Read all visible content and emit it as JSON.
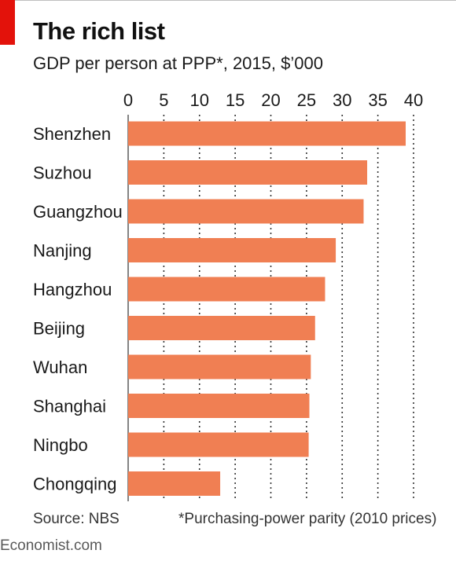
{
  "title": "The rich list",
  "subtitle": "GDP per person at PPP*, 2015, $’000",
  "source": "Source: NBS",
  "footnote": "*Purchasing-power parity (2010 prices)",
  "brand": "Economist.com",
  "colors": {
    "bar": "#f07f53",
    "accent": "#e3120b",
    "grid": "#333333"
  },
  "chart_data": {
    "type": "bar",
    "orientation": "horizontal",
    "title": "The rich list",
    "subtitle": "GDP per person at PPP*, 2015, $’000",
    "categories": [
      "Shenzhen",
      "Suzhou",
      "Guangzhou",
      "Nanjing",
      "Hangzhou",
      "Beijing",
      "Wuhan",
      "Shanghai",
      "Ningbo",
      "Chongqing"
    ],
    "values": [
      38.9,
      33.5,
      33.0,
      29.1,
      27.6,
      26.2,
      25.6,
      25.4,
      25.3,
      12.9
    ],
    "xlim": [
      0,
      40
    ],
    "xticks": [
      "0",
      "5",
      "10",
      "15",
      "20",
      "25",
      "30",
      "35",
      "40"
    ],
    "xlabel": "",
    "ylabel": "",
    "grid": "vertical dotted",
    "axis_position": "top"
  }
}
